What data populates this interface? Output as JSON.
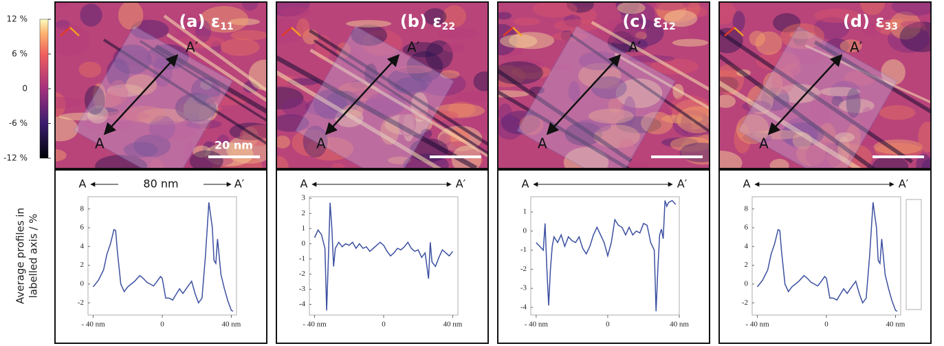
{
  "colorbar": {
    "lim": [
      -12,
      12
    ],
    "ticks": [
      {
        "value": 12,
        "label": "12 %"
      },
      {
        "value": 6,
        "label": "6 %"
      },
      0,
      {
        "value": -6,
        "label": "-6 %"
      },
      {
        "value": -12,
        "label": "-12 %"
      }
    ]
  },
  "ylabel": [
    "Average profiles in",
    "labelled axis / %"
  ],
  "annotations": {
    "start": "A",
    "end": "A′",
    "length": "80 nm",
    "scale_bar": "20 nm"
  },
  "chart_data": [
    {
      "type": "line",
      "title": "(a) ε",
      "subscript": "11",
      "color": "#3b4fa0",
      "x": [
        -40,
        -37,
        -34,
        -32,
        -30,
        -28,
        -27,
        -26,
        -24,
        -22,
        -20,
        -18,
        -16,
        -13,
        -11,
        -9,
        -7,
        -5,
        -3,
        -1,
        0,
        2,
        4,
        6,
        8,
        10,
        12,
        15,
        17,
        19,
        21,
        23,
        25,
        27,
        29,
        30,
        31,
        32,
        34,
        36,
        38,
        40,
        41
      ],
      "values": [
        -0.3,
        0.4,
        1.5,
        3.2,
        4.3,
        5.8,
        5.7,
        3.5,
        0,
        -0.8,
        -0.3,
        0,
        0.3,
        0.9,
        0.6,
        0.2,
        0,
        -0.2,
        0.3,
        0.8,
        0.6,
        -1.5,
        -1.5,
        -1.7,
        -1.1,
        -0.5,
        -1,
        -0.2,
        0.3,
        -1,
        -2,
        -1.5,
        3,
        8.7,
        6,
        2.5,
        2.2,
        4.8,
        1,
        -0.5,
        -1.8,
        -2.8,
        -2.9
      ],
      "xlim": [
        -43,
        43
      ],
      "xticks": [
        {
          "value": -40,
          "label": "- 40 nm"
        },
        0,
        {
          "value": 40,
          "label": "40 nm"
        }
      ],
      "ylim": [
        -3.3,
        9.3
      ],
      "yticks": [
        -2,
        0,
        2,
        4,
        6,
        8
      ]
    },
    {
      "type": "line",
      "title": "(b) ε",
      "subscript": "22",
      "color": "#3b4fa0",
      "x": [
        -40,
        -38,
        -36,
        -34,
        -33,
        -32,
        -31,
        -30,
        -29,
        -28,
        -26,
        -24,
        -22,
        -20,
        -18,
        -16,
        -14,
        -12,
        -10,
        -8,
        -6,
        -4,
        -2,
        0,
        2,
        4,
        6,
        8,
        10,
        12,
        14,
        16,
        18,
        20,
        22,
        24,
        26,
        27,
        28,
        30,
        32,
        34,
        36,
        38,
        40
      ],
      "values": [
        0.4,
        0.9,
        0.6,
        -0.3,
        -4.4,
        -1,
        2.7,
        1,
        -1.5,
        -0.3,
        0.1,
        -0.2,
        0,
        -0.1,
        0.1,
        -0.3,
        0,
        -0.3,
        -0.2,
        -0.5,
        -0.3,
        -0.1,
        0.1,
        -0.1,
        -0.5,
        -0.8,
        -0.6,
        -0.3,
        -0.4,
        -0.2,
        0.1,
        -0.3,
        -0.5,
        -0.4,
        -0.9,
        -0.6,
        -2.3,
        0.1,
        -1.2,
        -1.5,
        -0.9,
        -0.4,
        -0.6,
        -0.8,
        -0.5
      ],
      "xlim": [
        -43,
        43
      ],
      "xticks": [
        {
          "value": -40,
          "label": "- 40 nm"
        },
        0,
        {
          "value": 40,
          "label": "40 nm"
        }
      ],
      "ylim": [
        -4.7,
        3.1
      ],
      "yticks": [
        -4,
        -3,
        -2,
        -1,
        0,
        1,
        2,
        3
      ]
    },
    {
      "type": "line",
      "title": "(c) ε",
      "subscript": "12",
      "color": "#3b4fa0",
      "x": [
        -40,
        -38,
        -36,
        -35,
        -34,
        -33,
        -32,
        -31,
        -30,
        -28,
        -26,
        -24,
        -22,
        -20,
        -18,
        -16,
        -14,
        -12,
        -10,
        -8,
        -6,
        -4,
        -2,
        0,
        2,
        4,
        6,
        8,
        10,
        12,
        14,
        16,
        18,
        20,
        22,
        24,
        26,
        27,
        28,
        29,
        30,
        31,
        32,
        33,
        34,
        36,
        38
      ],
      "values": [
        -0.6,
        -0.8,
        -1,
        0.4,
        -2,
        -3.9,
        -2,
        -0.8,
        -0.3,
        -0.6,
        -0.2,
        -0.8,
        -0.3,
        -0.5,
        -0.6,
        -0.3,
        -0.9,
        -1.2,
        -0.8,
        -0.2,
        0.2,
        -0.2,
        -0.6,
        -1.3,
        -0.6,
        0.6,
        0.3,
        0.2,
        -0.2,
        0.2,
        -0.2,
        0,
        -0.1,
        0.4,
        0.3,
        -0.6,
        -1,
        -4.2,
        -2,
        -0.2,
        0.1,
        -0.4,
        1.6,
        1.3,
        1.5,
        1.6,
        1.4
      ],
      "xlim": [
        -43,
        40
      ],
      "xticks": [
        {
          "value": -40,
          "label": "- 40 nm"
        },
        0,
        {
          "value": 40,
          "label": "40 nm"
        }
      ],
      "ylim": [
        -4.4,
        1.8
      ],
      "yticks": [
        -4,
        -3,
        -2,
        -1,
        0,
        1
      ]
    },
    {
      "type": "line",
      "title": "(d) ε",
      "subscript": "33",
      "color": "#3b4fa0",
      "x": [
        -40,
        -37,
        -34,
        -32,
        -30,
        -28,
        -27,
        -26,
        -24,
        -22,
        -20,
        -18,
        -16,
        -13,
        -11,
        -9,
        -7,
        -5,
        -3,
        -1,
        0,
        2,
        4,
        6,
        8,
        10,
        12,
        15,
        17,
        19,
        21,
        23,
        25,
        27,
        29,
        30,
        31,
        32,
        34,
        36,
        38,
        40,
        41
      ],
      "values": [
        -0.3,
        0.4,
        1.5,
        3.2,
        4.3,
        5.8,
        5.7,
        3.5,
        0,
        -0.8,
        -0.3,
        0,
        0.3,
        0.9,
        0.6,
        0.2,
        0,
        -0.2,
        0.3,
        0.8,
        0.6,
        -1.5,
        -1.5,
        -1.7,
        -1.1,
        -0.5,
        -1,
        -0.2,
        0.3,
        -1,
        -2,
        -1.5,
        3,
        8.7,
        6,
        2.5,
        2.2,
        4.8,
        1,
        -0.5,
        -1.8,
        -2.8,
        -2.9
      ],
      "xlim": [
        -43,
        43
      ],
      "xticks": [
        {
          "value": -40,
          "label": "- 40 nm"
        },
        0,
        {
          "value": 40,
          "label": "40 nm"
        }
      ],
      "ylim": [
        -3.3,
        9.3
      ],
      "yticks": [
        -2,
        0,
        2,
        4,
        6,
        8
      ]
    }
  ]
}
